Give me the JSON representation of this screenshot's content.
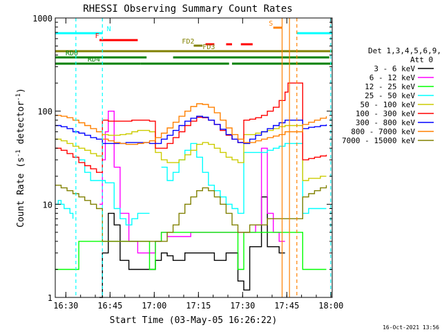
{
  "chart_data": {
    "type": "line",
    "title": "RHESSI Observing Summary Count Rates",
    "xlabel": "Start Time (03-May-05 16:26:22)",
    "ylabel": "Count Rate (s⁻¹ detector⁻¹)",
    "ylabel_parts": [
      "Count Rate (s",
      "-1",
      " detector",
      "-1",
      ")"
    ],
    "x_unit": "minutes after 16:26:22",
    "xlim": [
      0,
      94
    ],
    "ylim": [
      1,
      1000
    ],
    "y_scale": "log",
    "x_ticks": [
      {
        "label": "16:30",
        "x": 3.6
      },
      {
        "label": "16:45",
        "x": 18.6
      },
      {
        "label": "17:00",
        "x": 33.6
      },
      {
        "label": "17:15",
        "x": 48.6
      },
      {
        "label": "17:30",
        "x": 63.6
      },
      {
        "label": "17:45",
        "x": 78.6
      },
      {
        "label": "18:00",
        "x": 93.6
      }
    ],
    "y_ticks": [
      {
        "label": "1",
        "y": 1
      },
      {
        "label": "10",
        "y": 10
      },
      {
        "label": "100",
        "y": 100
      },
      {
        "label": "1000",
        "y": 1000
      }
    ],
    "legend": {
      "placement": "right",
      "header": [
        "Det 1,3,4,5,6,9,",
        "Att 0"
      ]
    },
    "footer_date": "16-Oct-2021 13:56",
    "series": [
      {
        "name": "3 - 6 keV",
        "color": "#000000",
        "x": [
          0,
          1,
          5,
          8,
          10,
          12,
          15,
          16,
          18,
          20,
          22,
          25,
          28,
          30,
          32,
          34,
          36,
          38,
          40,
          42,
          44,
          46,
          48,
          50,
          52,
          54,
          56,
          58,
          60,
          62,
          64,
          66,
          68,
          70,
          72,
          74,
          76,
          78,
          80,
          82,
          88,
          90,
          92,
          94
        ],
        "y": [
          null,
          null,
          null,
          null,
          null,
          null,
          1,
          3,
          8,
          6,
          2.5,
          2,
          2,
          2,
          2,
          2.5,
          3,
          2.8,
          2.5,
          2.5,
          3,
          3,
          3,
          3,
          3,
          2.5,
          2.5,
          3,
          3,
          1.5,
          1.2,
          3.5,
          3.5,
          12,
          3.5,
          3.5,
          3,
          3,
          null,
          null,
          null,
          null,
          null,
          null
        ]
      },
      {
        "name": "6 - 12 keV",
        "color": "#ff00ff",
        "x": [
          0,
          1,
          5,
          8,
          10,
          12,
          14,
          15,
          16,
          17,
          18,
          20,
          22,
          25,
          28,
          30,
          32,
          34,
          36,
          38,
          40,
          42,
          44,
          46,
          48,
          50,
          52,
          54,
          56,
          58,
          60,
          62,
          64,
          66,
          68,
          70,
          72,
          74,
          76,
          78
        ],
        "y": [
          null,
          null,
          null,
          null,
          null,
          null,
          null,
          10,
          30,
          60,
          100,
          25,
          8,
          4,
          3,
          3,
          3,
          4,
          5,
          4.5,
          4.5,
          4.5,
          4.5,
          5,
          5,
          5,
          5,
          5,
          5,
          5,
          5,
          5,
          5,
          5,
          6,
          40,
          8,
          5,
          4,
          4
        ]
      },
      {
        "name": "12 - 25 keV",
        "color": "#00ff00",
        "x": [
          0,
          2,
          4,
          6,
          7,
          8,
          10,
          12,
          14,
          16,
          18,
          20,
          22,
          24,
          26,
          28,
          30,
          32,
          34,
          36,
          38,
          40,
          42,
          44,
          46,
          48,
          50,
          52,
          54,
          56,
          58,
          60,
          62,
          64,
          66,
          68,
          70,
          72,
          74,
          76,
          78,
          84,
          86,
          88,
          90,
          92
        ],
        "y": [
          2,
          2,
          2,
          2,
          2,
          4,
          4,
          4,
          4,
          4,
          4,
          4,
          4,
          4,
          4,
          4,
          4,
          2,
          4,
          5,
          5,
          5,
          5,
          5,
          5,
          5,
          5,
          5,
          5,
          5,
          5,
          5,
          2,
          5,
          5,
          5,
          5,
          5,
          5,
          5,
          5,
          2,
          2,
          2,
          2,
          2
        ]
      },
      {
        "name": "25 - 50 keV",
        "color": "#00ffff",
        "x": [
          0,
          1,
          2,
          3,
          5,
          6,
          7,
          8,
          10,
          12,
          14,
          16,
          17,
          18,
          20,
          22,
          24,
          26,
          28,
          30,
          32,
          34,
          36,
          38,
          40,
          42,
          44,
          46,
          48,
          50,
          52,
          54,
          56,
          58,
          60,
          62,
          64,
          66,
          68,
          70,
          72,
          74,
          76,
          78,
          84,
          86,
          88,
          90,
          92
        ],
        "y": [
          10,
          11,
          10,
          9,
          8,
          7,
          null,
          30,
          22,
          18,
          18,
          18,
          17,
          17,
          9,
          7,
          6,
          7,
          8,
          8,
          8,
          null,
          25,
          18,
          22,
          30,
          38,
          45,
          32,
          22,
          16,
          14,
          12,
          10,
          9,
          8,
          36,
          36,
          36,
          36,
          38,
          40,
          42,
          45,
          8,
          9,
          9,
          9,
          9
        ]
      },
      {
        "name": "50 - 100 keV",
        "color": "#cccc00",
        "x": [
          0,
          2,
          4,
          6,
          8,
          10,
          12,
          14,
          16,
          18,
          20,
          22,
          24,
          26,
          28,
          30,
          32,
          34,
          36,
          38,
          40,
          42,
          44,
          46,
          48,
          50,
          52,
          54,
          56,
          58,
          60,
          62,
          64,
          66,
          68,
          70,
          72,
          74,
          76,
          78,
          84,
          86,
          88,
          90,
          92
        ],
        "y": [
          50,
          48,
          45,
          42,
          40,
          38,
          35,
          33,
          56,
          55,
          55,
          56,
          57,
          60,
          62,
          62,
          60,
          36,
          30,
          28,
          28,
          30,
          34,
          38,
          44,
          46,
          44,
          40,
          36,
          32,
          30,
          28,
          56,
          56,
          58,
          60,
          62,
          65,
          68,
          70,
          18,
          19,
          19,
          20,
          20
        ]
      },
      {
        "name": "100 - 300 keV",
        "color": "#ff0000",
        "x": [
          0,
          2,
          4,
          6,
          8,
          10,
          12,
          14,
          16,
          18,
          20,
          22,
          24,
          26,
          28,
          30,
          32,
          34,
          36,
          38,
          40,
          42,
          44,
          46,
          48,
          50,
          52,
          54,
          56,
          58,
          60,
          62,
          64,
          66,
          68,
          70,
          72,
          74,
          76,
          78,
          79,
          84,
          86,
          88,
          90,
          92
        ],
        "y": [
          40,
          38,
          35,
          32,
          28,
          26,
          24,
          22,
          80,
          78,
          78,
          78,
          78,
          80,
          80,
          80,
          78,
          40,
          40,
          45,
          52,
          60,
          70,
          78,
          86,
          85,
          80,
          72,
          62,
          55,
          50,
          46,
          80,
          82,
          85,
          90,
          100,
          110,
          130,
          160,
          200,
          30,
          31,
          32,
          33,
          34
        ]
      },
      {
        "name": "300 - 800 keV",
        "color": "#0000ff",
        "x": [
          0,
          2,
          4,
          6,
          8,
          10,
          12,
          14,
          16,
          18,
          20,
          22,
          24,
          26,
          28,
          30,
          32,
          34,
          36,
          38,
          40,
          42,
          44,
          46,
          48,
          50,
          52,
          54,
          56,
          58,
          60,
          62,
          64,
          66,
          68,
          70,
          72,
          74,
          76,
          78,
          84,
          86,
          88,
          90,
          92
        ],
        "y": [
          70,
          68,
          65,
          60,
          58,
          55,
          52,
          50,
          45,
          45,
          45,
          45,
          46,
          46,
          46,
          46,
          45,
          45,
          50,
          55,
          62,
          70,
          78,
          84,
          88,
          86,
          80,
          72,
          64,
          56,
          50,
          46,
          45,
          50,
          55,
          60,
          65,
          70,
          75,
          80,
          65,
          67,
          68,
          70,
          72
        ]
      },
      {
        "name": "800 - 7000 keV",
        "color": "#ff8000",
        "x": [
          0,
          2,
          4,
          6,
          8,
          10,
          12,
          14,
          16,
          18,
          20,
          22,
          24,
          26,
          28,
          30,
          32,
          34,
          36,
          38,
          40,
          42,
          44,
          46,
          48,
          50,
          52,
          54,
          56,
          58,
          60,
          62,
          64,
          66,
          68,
          70,
          72,
          74,
          76,
          78,
          84,
          86,
          88,
          90,
          92
        ],
        "y": [
          90,
          88,
          85,
          80,
          75,
          70,
          65,
          60,
          50,
          48,
          46,
          45,
          44,
          44,
          45,
          46,
          48,
          52,
          58,
          66,
          76,
          88,
          100,
          112,
          120,
          118,
          110,
          96,
          80,
          66,
          56,
          50,
          46,
          46,
          48,
          50,
          52,
          54,
          56,
          60,
          72,
          76,
          80,
          84,
          88
        ]
      },
      {
        "name": "7000 - 15000 keV",
        "color": "#808000",
        "x": [
          0,
          2,
          4,
          6,
          8,
          10,
          12,
          14,
          16,
          18,
          20,
          22,
          24,
          26,
          28,
          30,
          32,
          34,
          36,
          38,
          40,
          42,
          44,
          46,
          48,
          50,
          52,
          54,
          56,
          58,
          60,
          62,
          64,
          66,
          68,
          70,
          72,
          74,
          76,
          78,
          84,
          86,
          88,
          90,
          92
        ],
        "y": [
          16,
          15,
          14,
          13,
          12,
          11,
          10,
          9,
          4,
          4,
          4,
          4,
          4,
          4,
          4,
          4,
          4,
          4,
          4,
          5,
          6,
          8,
          10,
          12,
          14,
          15,
          14,
          12,
          10,
          8,
          6,
          5,
          5,
          6,
          6,
          6,
          7,
          7,
          7,
          7,
          12,
          13,
          14,
          15,
          16
        ]
      }
    ],
    "flags": [
      {
        "label": "N",
        "color": "#00ffff",
        "label_x": 17.5,
        "segments": [
          [
            0,
            16
          ],
          [
            82,
            94
          ]
        ]
      },
      {
        "label": "F",
        "color": "#ff0000",
        "label_x": 13.5,
        "segments": [
          [
            15,
            28
          ]
        ]
      },
      {
        "label": "FD2",
        "color": "#808000",
        "label_x": 43,
        "segments": [
          [
            47,
            50
          ]
        ]
      },
      {
        "label": "",
        "color": "#ff0000",
        "label_x": 0,
        "segments": [
          [
            51,
            54
          ],
          [
            58,
            60
          ],
          [
            63,
            67
          ]
        ]
      },
      {
        "label": "S",
        "color": "#ff8000",
        "label_x": 72.5,
        "segments": [
          [
            74,
            77
          ]
        ]
      },
      {
        "label": "FD3",
        "color": "#808000",
        "label_x": 50,
        "segments": [
          [
            0,
            94
          ]
        ]
      },
      {
        "label": "RD0",
        "color": "#008000",
        "label_x": 3.5,
        "segments": [
          [
            0,
            31
          ],
          [
            40,
            93
          ]
        ]
      },
      {
        "label": "RD4",
        "color": "#008000",
        "label_x": 11,
        "segments": [
          [
            0,
            29
          ],
          [
            29,
            59
          ],
          [
            60,
            94
          ]
        ]
      }
    ],
    "markers": [
      {
        "x": 7,
        "color": "#00ffff",
        "style": "dashed"
      },
      {
        "x": 16,
        "color": "#00ffff",
        "style": "dashed"
      },
      {
        "x": 77,
        "color": "#ff8000",
        "style": "solid"
      },
      {
        "x": 79.5,
        "color": "#ff8000",
        "style": "solid"
      },
      {
        "x": 82,
        "color": "#ff8000",
        "style": "dashed"
      },
      {
        "x": 93.5,
        "color": "#00ffff",
        "style": "dashed"
      }
    ]
  }
}
